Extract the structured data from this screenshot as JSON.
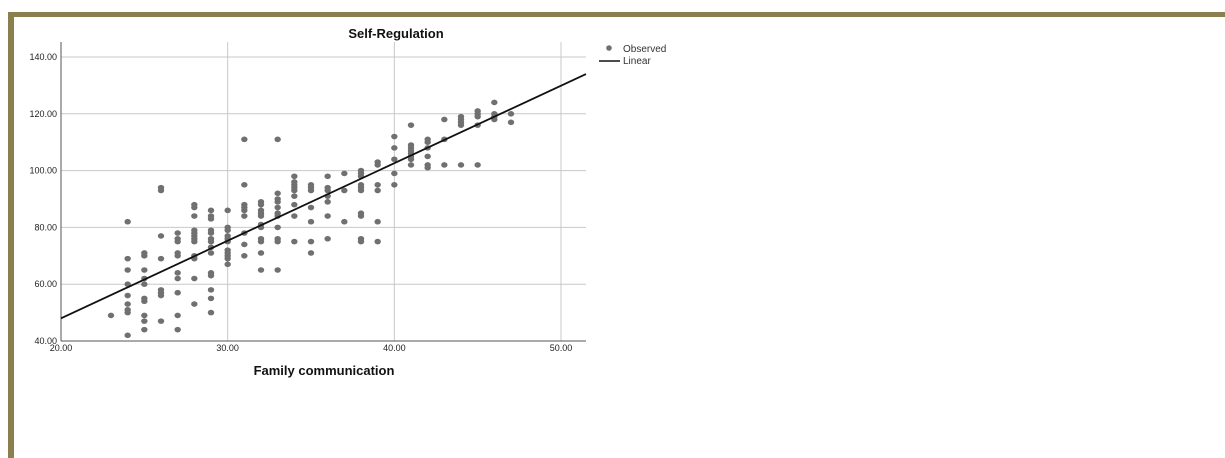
{
  "chart_data": {
    "type": "scatter",
    "title": "Self-Regulation",
    "xlabel": "Family communication",
    "ylabel": "",
    "xlim": [
      20,
      51.5
    ],
    "ylim": [
      40,
      144
    ],
    "xticks": [
      20,
      30,
      40,
      50
    ],
    "xtick_labels": [
      "20.00",
      "30.00",
      "40.00",
      "50.00"
    ],
    "yticks": [
      40,
      60,
      80,
      100,
      120,
      140
    ],
    "ytick_labels": [
      "40.00",
      "60.00",
      "80.00",
      "100.00",
      "120.00",
      "140.00"
    ],
    "grid": true,
    "legend_position": "top-right-outside",
    "colors": {
      "points": "#707070",
      "line": "#111111",
      "grid": "#c8c8c8",
      "frame": "#8c7f4f"
    },
    "series": [
      {
        "name": "Observed",
        "kind": "scatter",
        "points": [
          [
            23,
            49
          ],
          [
            24,
            82
          ],
          [
            24,
            69
          ],
          [
            24,
            65
          ],
          [
            24,
            60
          ],
          [
            24,
            56
          ],
          [
            24,
            53
          ],
          [
            24,
            51
          ],
          [
            24,
            50
          ],
          [
            24,
            42
          ],
          [
            25,
            71
          ],
          [
            25,
            70
          ],
          [
            25,
            65
          ],
          [
            25,
            62
          ],
          [
            25,
            60
          ],
          [
            25,
            55
          ],
          [
            25,
            54
          ],
          [
            25,
            49
          ],
          [
            25,
            47
          ],
          [
            25,
            44
          ],
          [
            26,
            94
          ],
          [
            26,
            93
          ],
          [
            26,
            77
          ],
          [
            26,
            69
          ],
          [
            26,
            58
          ],
          [
            26,
            57
          ],
          [
            26,
            56
          ],
          [
            26,
            47
          ],
          [
            27,
            78
          ],
          [
            27,
            76
          ],
          [
            27,
            75
          ],
          [
            27,
            71
          ],
          [
            27,
            70
          ],
          [
            27,
            64
          ],
          [
            27,
            62
          ],
          [
            27,
            57
          ],
          [
            27,
            49
          ],
          [
            27,
            44
          ],
          [
            28,
            88
          ],
          [
            28,
            87
          ],
          [
            28,
            84
          ],
          [
            28,
            79
          ],
          [
            28,
            78
          ],
          [
            28,
            77
          ],
          [
            28,
            76
          ],
          [
            28,
            75
          ],
          [
            28,
            70
          ],
          [
            28,
            69
          ],
          [
            28,
            62
          ],
          [
            28,
            53
          ],
          [
            29,
            86
          ],
          [
            29,
            84
          ],
          [
            29,
            83
          ],
          [
            29,
            79
          ],
          [
            29,
            78
          ],
          [
            29,
            76
          ],
          [
            29,
            75
          ],
          [
            29,
            73
          ],
          [
            29,
            71
          ],
          [
            29,
            64
          ],
          [
            29,
            63
          ],
          [
            29,
            58
          ],
          [
            29,
            55
          ],
          [
            29,
            50
          ],
          [
            30,
            86
          ],
          [
            30,
            80
          ],
          [
            30,
            79
          ],
          [
            30,
            77
          ],
          [
            30,
            76
          ],
          [
            30,
            75
          ],
          [
            30,
            72
          ],
          [
            30,
            71
          ],
          [
            30,
            70
          ],
          [
            30,
            69
          ],
          [
            30,
            67
          ],
          [
            31,
            111
          ],
          [
            31,
            95
          ],
          [
            31,
            88
          ],
          [
            31,
            87
          ],
          [
            31,
            86
          ],
          [
            31,
            84
          ],
          [
            31,
            78
          ],
          [
            31,
            74
          ],
          [
            31,
            70
          ],
          [
            32,
            89
          ],
          [
            32,
            88
          ],
          [
            32,
            86
          ],
          [
            32,
            85
          ],
          [
            32,
            84
          ],
          [
            32,
            81
          ],
          [
            32,
            80
          ],
          [
            32,
            76
          ],
          [
            32,
            75
          ],
          [
            32,
            71
          ],
          [
            32,
            65
          ],
          [
            33,
            111
          ],
          [
            33,
            92
          ],
          [
            33,
            90
          ],
          [
            33,
            89
          ],
          [
            33,
            87
          ],
          [
            33,
            85
          ],
          [
            33,
            84
          ],
          [
            33,
            80
          ],
          [
            33,
            76
          ],
          [
            33,
            75
          ],
          [
            33,
            65
          ],
          [
            34,
            98
          ],
          [
            34,
            96
          ],
          [
            34,
            95
          ],
          [
            34,
            94
          ],
          [
            34,
            93
          ],
          [
            34,
            91
          ],
          [
            34,
            88
          ],
          [
            34,
            84
          ],
          [
            34,
            75
          ],
          [
            35,
            95
          ],
          [
            35,
            94
          ],
          [
            35,
            93
          ],
          [
            35,
            87
          ],
          [
            35,
            82
          ],
          [
            35,
            75
          ],
          [
            35,
            71
          ],
          [
            36,
            98
          ],
          [
            36,
            94
          ],
          [
            36,
            93
          ],
          [
            36,
            91
          ],
          [
            36,
            89
          ],
          [
            36,
            84
          ],
          [
            36,
            76
          ],
          [
            37,
            99
          ],
          [
            37,
            93
          ],
          [
            37,
            82
          ],
          [
            38,
            100
          ],
          [
            38,
            99
          ],
          [
            38,
            98
          ],
          [
            38,
            95
          ],
          [
            38,
            94
          ],
          [
            38,
            93
          ],
          [
            38,
            85
          ],
          [
            38,
            84
          ],
          [
            38,
            76
          ],
          [
            38,
            75
          ],
          [
            39,
            103
          ],
          [
            39,
            102
          ],
          [
            39,
            95
          ],
          [
            39,
            93
          ],
          [
            39,
            82
          ],
          [
            39,
            75
          ],
          [
            40,
            112
          ],
          [
            40,
            108
          ],
          [
            40,
            104
          ],
          [
            40,
            99
          ],
          [
            40,
            95
          ],
          [
            41,
            116
          ],
          [
            41,
            109
          ],
          [
            41,
            108
          ],
          [
            41,
            107
          ],
          [
            41,
            106
          ],
          [
            41,
            105
          ],
          [
            41,
            104
          ],
          [
            41,
            102
          ],
          [
            42,
            111
          ],
          [
            42,
            110
          ],
          [
            42,
            108
          ],
          [
            42,
            105
          ],
          [
            42,
            102
          ],
          [
            42,
            101
          ],
          [
            43,
            118
          ],
          [
            43,
            111
          ],
          [
            43,
            102
          ],
          [
            44,
            119
          ],
          [
            44,
            118
          ],
          [
            44,
            117
          ],
          [
            44,
            116
          ],
          [
            44,
            102
          ],
          [
            45,
            121
          ],
          [
            45,
            120
          ],
          [
            45,
            119
          ],
          [
            45,
            116
          ],
          [
            45,
            102
          ],
          [
            46,
            124
          ],
          [
            46,
            120
          ],
          [
            46,
            119
          ],
          [
            46,
            118
          ],
          [
            47,
            120
          ],
          [
            47,
            117
          ]
        ]
      },
      {
        "name": "Linear",
        "kind": "line",
        "points": [
          [
            20,
            48
          ],
          [
            51.5,
            134
          ]
        ]
      }
    ]
  }
}
